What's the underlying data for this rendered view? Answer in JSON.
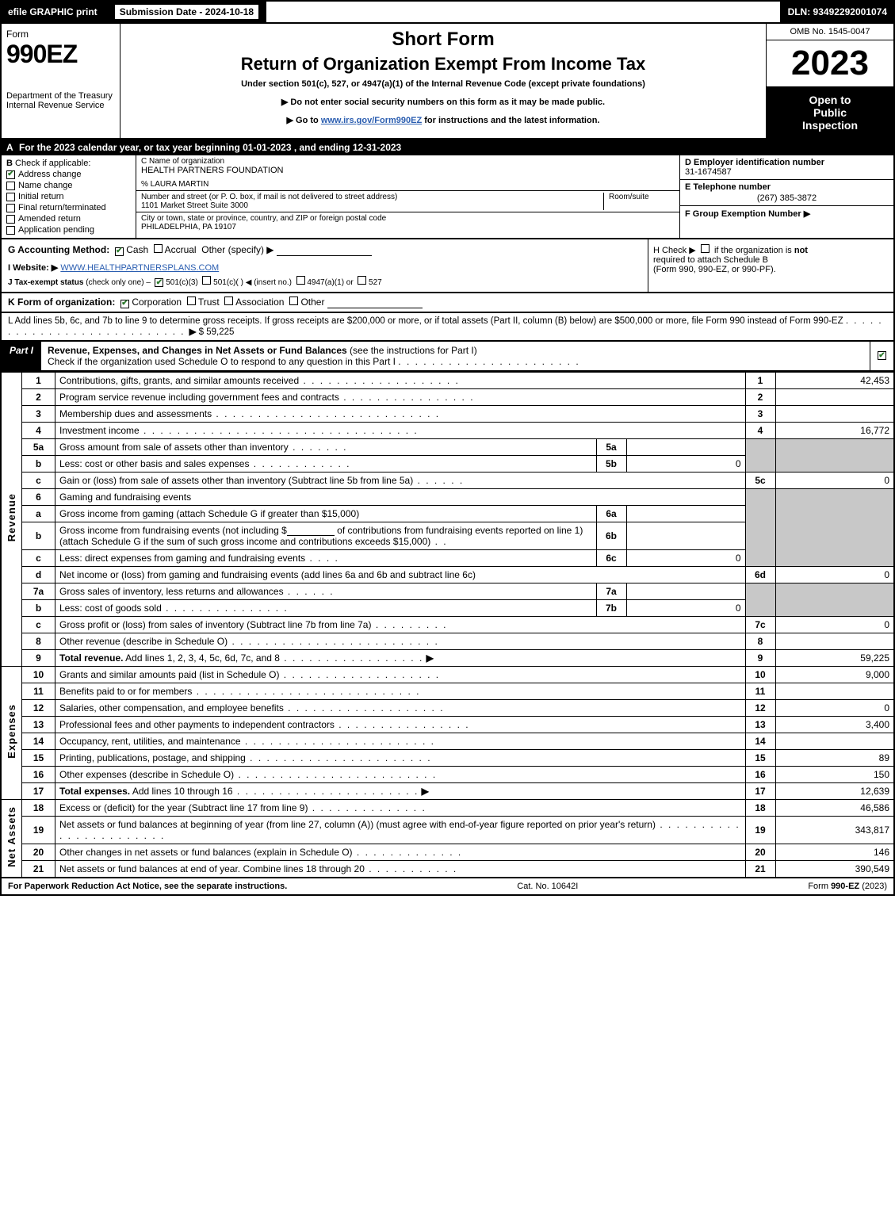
{
  "topbar": {
    "efile": "efile GRAPHIC print",
    "submission_label": "Submission Date - 2024-10-18",
    "dln": "DLN: 93492292001074"
  },
  "header": {
    "form_word": "Form",
    "form_number": "990EZ",
    "dept": "Department of the Treasury\nInternal Revenue Service",
    "short_form": "Short Form",
    "title": "Return of Organization Exempt From Income Tax",
    "subtitle": "Under section 501(c), 527, or 4947(a)(1) of the Internal Revenue Code (except private foundations)",
    "note1": "▶ Do not enter social security numbers on this form as it may be made public.",
    "note2_prefix": "▶ Go to ",
    "note2_link": "www.irs.gov/Form990EZ",
    "note2_suffix": " for instructions and the latest information.",
    "omb": "OMB No. 1545-0047",
    "year": "2023",
    "open_to_public": "Open to\nPublic\nInspection"
  },
  "row_a": {
    "letter": "A",
    "text": "For the 2023 calendar year, or tax year beginning 01-01-2023 , and ending 12-31-2023"
  },
  "col_b": {
    "letter": "B",
    "label": "Check if applicable:",
    "items": [
      {
        "label": "Address change",
        "checked": true
      },
      {
        "label": "Name change",
        "checked": false
      },
      {
        "label": "Initial return",
        "checked": false
      },
      {
        "label": "Final return/terminated",
        "checked": false
      },
      {
        "label": "Amended return",
        "checked": false
      },
      {
        "label": "Application pending",
        "checked": false
      }
    ]
  },
  "col_c": {
    "c_label": "C Name of organization",
    "org_name": "HEALTH PARTNERS FOUNDATION",
    "care_of": "% LAURA MARTIN",
    "street_label": "Number and street (or P. O. box, if mail is not delivered to street address)",
    "room_label": "Room/suite",
    "street": "1101 Market Street Suite 3000",
    "city_label": "City or town, state or province, country, and ZIP or foreign postal code",
    "city": "PHILADELPHIA, PA  19107"
  },
  "col_def": {
    "d_label": "D Employer identification number",
    "d_value": "31-1674587",
    "e_label": "E Telephone number",
    "e_value": "(267) 385-3872",
    "f_label": "F Group Exemption Number",
    "f_arrow": "▶"
  },
  "g": {
    "label": "G Accounting Method:",
    "cash": "Cash",
    "accrual": "Accrual",
    "other": "Other (specify) ▶"
  },
  "h": {
    "text1": "H  Check ▶",
    "text2": "if the organization is",
    "text3": "not",
    "text4": "required to attach Schedule B",
    "text5": "(Form 990, 990-EZ, or 990-PF)."
  },
  "i": {
    "label": "I Website: ▶",
    "url": "WWW.HEALTHPARTNERSPLANS.COM"
  },
  "j": {
    "label": "J Tax-exempt status",
    "sub": "(check only one) –",
    "opt1": "501(c)(3)",
    "opt2": "501(c)(  ) ◀ (insert no.)",
    "opt3": "4947(a)(1) or",
    "opt4": "527"
  },
  "k": {
    "label": "K Form of organization:",
    "opts": [
      "Corporation",
      "Trust",
      "Association",
      "Other"
    ]
  },
  "l": {
    "text": "L Add lines 5b, 6c, and 7b to line 9 to determine gross receipts. If gross receipts are $200,000 or more, or if total assets (Part II, column (B) below) are $500,000 or more, file Form 990 instead of Form 990-EZ",
    "arrow": "▶",
    "value": "$ 59,225"
  },
  "part1": {
    "tag": "Part I",
    "title": "Revenue, Expenses, and Changes in Net Assets or Fund Balances",
    "paren": "(see the instructions for Part I)",
    "sub": "Check if the organization used Schedule O to respond to any question in this Part I",
    "checked": true
  },
  "revenue_label": "Revenue",
  "expenses_label": "Expenses",
  "netassets_label": "Net Assets",
  "lines": {
    "1": {
      "desc": "Contributions, gifts, grants, and similar amounts received",
      "rn": "1",
      "amount": "42,453"
    },
    "2": {
      "desc": "Program service revenue including government fees and contracts",
      "rn": "2",
      "amount": ""
    },
    "3": {
      "desc": "Membership dues and assessments",
      "rn": "3",
      "amount": ""
    },
    "4": {
      "desc": "Investment income",
      "rn": "4",
      "amount": "16,772"
    },
    "5a": {
      "desc": "Gross amount from sale of assets other than inventory",
      "sl": "5a",
      "sv": ""
    },
    "5b": {
      "desc": "Less: cost or other basis and sales expenses",
      "sl": "5b",
      "sv": "0"
    },
    "5c": {
      "desc": "Gain or (loss) from sale of assets other than inventory (Subtract line 5b from line 5a)",
      "rn": "5c",
      "amount": "0"
    },
    "6": {
      "desc": "Gaming and fundraising events"
    },
    "6a": {
      "desc": "Gross income from gaming (attach Schedule G if greater than $15,000)",
      "sl": "6a",
      "sv": ""
    },
    "6b": {
      "desc1": "Gross income from fundraising events (not including $",
      "desc2": "of contributions from fundraising events reported on line 1) (attach Schedule G if the sum of such gross income and contributions exceeds $15,000)",
      "sl": "6b",
      "sv": ""
    },
    "6c": {
      "desc": "Less: direct expenses from gaming and fundraising events",
      "sl": "6c",
      "sv": "0"
    },
    "6d": {
      "desc": "Net income or (loss) from gaming and fundraising events (add lines 6a and 6b and subtract line 6c)",
      "rn": "6d",
      "amount": "0"
    },
    "7a": {
      "desc": "Gross sales of inventory, less returns and allowances",
      "sl": "7a",
      "sv": ""
    },
    "7b": {
      "desc": "Less: cost of goods sold",
      "sl": "7b",
      "sv": "0"
    },
    "7c": {
      "desc": "Gross profit or (loss) from sales of inventory (Subtract line 7b from line 7a)",
      "rn": "7c",
      "amount": "0"
    },
    "8": {
      "desc": "Other revenue (describe in Schedule O)",
      "rn": "8",
      "amount": ""
    },
    "9": {
      "desc": "Total revenue. Add lines 1, 2, 3, 4, 5c, 6d, 7c, and 8",
      "rn": "9",
      "amount": "59,225",
      "bold": true,
      "arrow": true
    },
    "10": {
      "desc": "Grants and similar amounts paid (list in Schedule O)",
      "rn": "10",
      "amount": "9,000"
    },
    "11": {
      "desc": "Benefits paid to or for members",
      "rn": "11",
      "amount": ""
    },
    "12": {
      "desc": "Salaries, other compensation, and employee benefits",
      "rn": "12",
      "amount": "0"
    },
    "13": {
      "desc": "Professional fees and other payments to independent contractors",
      "rn": "13",
      "amount": "3,400"
    },
    "14": {
      "desc": "Occupancy, rent, utilities, and maintenance",
      "rn": "14",
      "amount": ""
    },
    "15": {
      "desc": "Printing, publications, postage, and shipping",
      "rn": "15",
      "amount": "89"
    },
    "16": {
      "desc": "Other expenses (describe in Schedule O)",
      "rn": "16",
      "amount": "150"
    },
    "17": {
      "desc": "Total expenses. Add lines 10 through 16",
      "rn": "17",
      "amount": "12,639",
      "bold": true,
      "arrow": true
    },
    "18": {
      "desc": "Excess or (deficit) for the year (Subtract line 17 from line 9)",
      "rn": "18",
      "amount": "46,586"
    },
    "19": {
      "desc": "Net assets or fund balances at beginning of year (from line 27, column (A)) (must agree with end-of-year figure reported on prior year's return)",
      "rn": "19",
      "amount": "343,817"
    },
    "20": {
      "desc": "Other changes in net assets or fund balances (explain in Schedule O)",
      "rn": "20",
      "amount": "146"
    },
    "21": {
      "desc": "Net assets or fund balances at end of year. Combine lines 18 through 20",
      "rn": "21",
      "amount": "390,549"
    }
  },
  "footer": {
    "left": "For Paperwork Reduction Act Notice, see the separate instructions.",
    "center": "Cat. No. 10642I",
    "right_prefix": "Form ",
    "right_form": "990-EZ",
    "right_suffix": " (2023)"
  },
  "colors": {
    "black": "#000000",
    "white": "#ffffff",
    "shade": "#c8c8c8",
    "link": "#2a5db0",
    "check_green": "#2a7a2a"
  }
}
